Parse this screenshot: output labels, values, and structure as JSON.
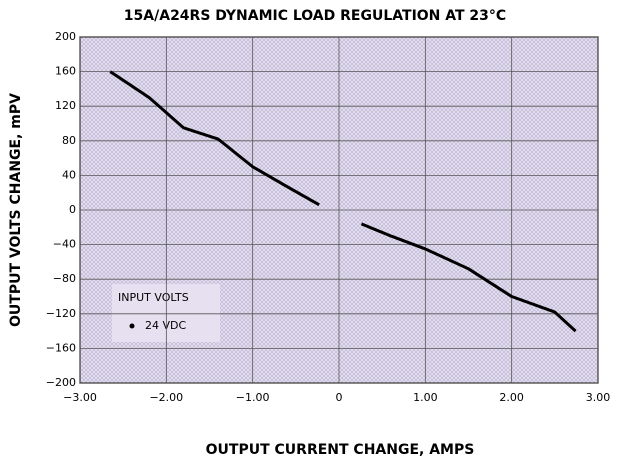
{
  "chart_data": {
    "type": "line",
    "title": "15A/A24RS DYNAMIC LOAD REGULATION AT 23°C",
    "x_label": "OUTPUT CURRENT CHANGE, AMPS",
    "y_label": "OUTPUT VOLTS CHANGE, mPV",
    "legend_title": "INPUT VOLTS",
    "series": [
      {
        "name": "24 VDC",
        "color": "#000000",
        "x": [
          -2.65,
          -2.2,
          -1.8,
          -1.4,
          -1.0,
          -0.6,
          -0.23,
          null,
          0.26,
          0.6,
          1.0,
          1.5,
          2.0,
          2.5,
          2.74
        ],
        "values": [
          160,
          130,
          95,
          82,
          50,
          27,
          6,
          null,
          -16,
          -30,
          -45,
          -68,
          -100,
          -118,
          -140
        ]
      }
    ],
    "xlim": [
      -3,
      3
    ],
    "xticks": [
      {
        "value": -3,
        "label": "−3.00"
      },
      {
        "value": -2,
        "label": "−2.00"
      },
      {
        "value": -1,
        "label": "−1.00"
      },
      0,
      {
        "value": 1,
        "label": "1.00"
      },
      {
        "value": 2,
        "label": "2.00"
      },
      {
        "value": 3,
        "label": "3.00"
      }
    ],
    "ylim": [
      -200,
      200
    ],
    "yticks": [
      {
        "value": -200,
        "label": "−200"
      },
      {
        "value": -160,
        "label": "−160"
      },
      {
        "value": -120,
        "label": "−120"
      },
      {
        "value": -80,
        "label": "−80"
      },
      {
        "value": -40,
        "label": "−40"
      },
      0,
      40,
      80,
      120,
      160,
      200
    ],
    "grid": true,
    "legend_position": "lower left"
  }
}
